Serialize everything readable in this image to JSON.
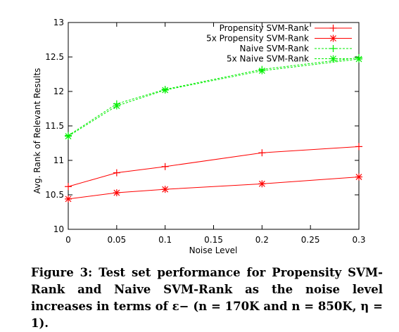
{
  "chart_data": {
    "type": "line",
    "xlabel": "Noise Level",
    "ylabel": "Avg. Rank of Relevant Results",
    "xlim": [
      0,
      0.3
    ],
    "ylim": [
      10,
      13
    ],
    "xticks": [
      "0",
      "0.05",
      "0.1",
      "0.15",
      "0.2",
      "0.25",
      "0.3"
    ],
    "yticks": [
      "10",
      "10.5",
      "11",
      "11.5",
      "12",
      "12.5",
      "13"
    ],
    "grid": false,
    "legend_position": "top-right",
    "series": [
      {
        "name": "Propensity SVM-Rank",
        "color": "#ff0000",
        "dash": "solid",
        "marker": "plus",
        "x": [
          0,
          0.05,
          0.1,
          0.2,
          0.3
        ],
        "y": [
          10.62,
          10.82,
          10.91,
          11.11,
          11.2
        ]
      },
      {
        "name": "5x Propensity SVM-Rank",
        "color": "#ff0000",
        "dash": "solid",
        "marker": "star",
        "x": [
          0,
          0.05,
          0.1,
          0.2,
          0.3
        ],
        "y": [
          10.44,
          10.53,
          10.58,
          10.66,
          10.76
        ]
      },
      {
        "name": "Naive SVM-Rank",
        "color": "#00ee00",
        "dash": "dashed",
        "marker": "plus",
        "x": [
          0,
          0.05,
          0.1,
          0.2,
          0.3
        ],
        "y": [
          11.36,
          11.82,
          12.03,
          12.32,
          12.49
        ]
      },
      {
        "name": "5x Naive SVM-Rank",
        "color": "#00ee00",
        "dash": "dashed",
        "marker": "star",
        "x": [
          0,
          0.05,
          0.1,
          0.2,
          0.3
        ],
        "y": [
          11.35,
          11.79,
          12.02,
          12.3,
          12.47
        ]
      }
    ]
  },
  "caption": "Figure 3: Test set performance for Propensity SVM-Rank and Naive SVM-Rank as the noise level increases in terms of ε− (n = 170K and n = 850K, η = 1)."
}
